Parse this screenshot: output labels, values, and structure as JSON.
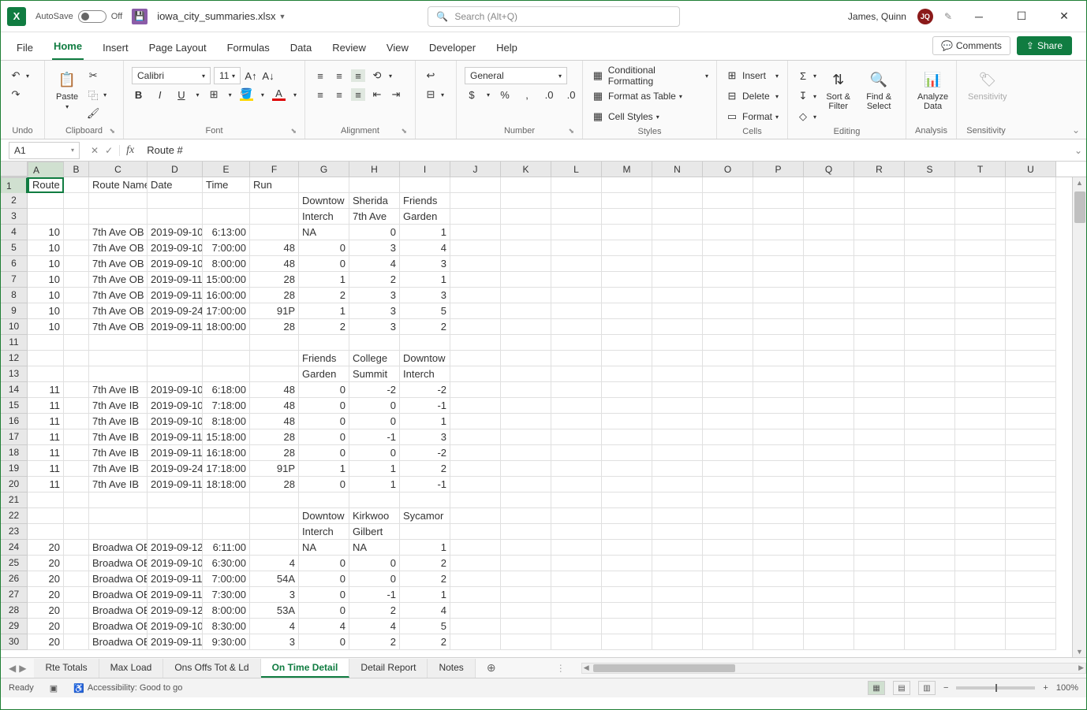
{
  "title": {
    "autosave_label": "AutoSave",
    "autosave_state": "Off",
    "filename": "iowa_city_summaries.xlsx",
    "search_placeholder": "Search (Alt+Q)",
    "username": "James, Quinn",
    "user_initials": "JQ"
  },
  "menu": {
    "tabs": [
      "File",
      "Home",
      "Insert",
      "Page Layout",
      "Formulas",
      "Data",
      "Review",
      "View",
      "Developer",
      "Help"
    ],
    "active": "Home",
    "comments": "Comments",
    "share": "Share"
  },
  "ribbon": {
    "undo_label": "Undo",
    "clipboard_label": "Clipboard",
    "paste": "Paste",
    "font_label": "Font",
    "font_name": "Calibri",
    "font_size": "11",
    "alignment_label": "Alignment",
    "number_label": "Number",
    "number_format": "General",
    "styles_label": "Styles",
    "cond_fmt": "Conditional Formatting",
    "fmt_table": "Format as Table",
    "cell_styles": "Cell Styles",
    "cells_label": "Cells",
    "insert": "Insert",
    "delete": "Delete",
    "format": "Format",
    "editing_label": "Editing",
    "sort_filter": "Sort & Filter",
    "find_select": "Find & Select",
    "analysis_label": "Analysis",
    "analyze_data": "Analyze Data",
    "sensitivity_label": "Sensitivity",
    "sensitivity": "Sensitivity"
  },
  "formula": {
    "namebox": "A1",
    "value": "Route #"
  },
  "columns": {
    "letters": [
      "A",
      "B",
      "C",
      "D",
      "E",
      "F",
      "G",
      "H",
      "I",
      "J",
      "K",
      "L",
      "M",
      "N",
      "O",
      "P",
      "Q",
      "R",
      "S",
      "T",
      "U"
    ],
    "widths": [
      46,
      32,
      74,
      70,
      60,
      62,
      64,
      64,
      64,
      64,
      64,
      64,
      64,
      64,
      64,
      64,
      64,
      64,
      64,
      64,
      64
    ],
    "selected": 0
  },
  "rows": {
    "count": 31,
    "selected": 1,
    "data": [
      {
        "r": 1,
        "cells": {
          "A": "Route #",
          "B": "",
          "C": "Route Name",
          "D": "Date",
          "E": "Time",
          "F": "Run"
        }
      },
      {
        "r": 2,
        "cells": {
          "G": "Downtow",
          "H": "Sherida",
          "I": "Friends"
        }
      },
      {
        "r": 3,
        "cells": {
          "G": "Interch",
          "H": "7th Ave",
          "I": "Garden"
        }
      },
      {
        "r": 4,
        "cells": {
          "A": "10",
          "C": "7th Ave OB",
          "D": "2019-09-10",
          "E": "6:13:00",
          "G": "NA",
          "H": "0",
          "I": "1"
        },
        "align": {
          "A": "r",
          "D": "r",
          "E": "r",
          "H": "r",
          "I": "r"
        }
      },
      {
        "r": 5,
        "cells": {
          "A": "10",
          "C": "7th Ave OB",
          "D": "2019-09-10",
          "E": "7:00:00",
          "F": "48",
          "G": "0",
          "H": "3",
          "I": "4"
        },
        "align": {
          "A": "r",
          "D": "r",
          "E": "r",
          "F": "r",
          "G": "r",
          "H": "r",
          "I": "r"
        }
      },
      {
        "r": 6,
        "cells": {
          "A": "10",
          "C": "7th Ave OB",
          "D": "2019-09-10",
          "E": "8:00:00",
          "F": "48",
          "G": "0",
          "H": "4",
          "I": "3"
        },
        "align": {
          "A": "r",
          "D": "r",
          "E": "r",
          "F": "r",
          "G": "r",
          "H": "r",
          "I": "r"
        }
      },
      {
        "r": 7,
        "cells": {
          "A": "10",
          "C": "7th Ave OB",
          "D": "2019-09-11",
          "E": "15:00:00",
          "F": "28",
          "G": "1",
          "H": "2",
          "I": "1"
        },
        "align": {
          "A": "r",
          "D": "r",
          "E": "r",
          "F": "r",
          "G": "r",
          "H": "r",
          "I": "r"
        }
      },
      {
        "r": 8,
        "cells": {
          "A": "10",
          "C": "7th Ave OB",
          "D": "2019-09-11",
          "E": "16:00:00",
          "F": "28",
          "G": "2",
          "H": "3",
          "I": "3"
        },
        "align": {
          "A": "r",
          "D": "r",
          "E": "r",
          "F": "r",
          "G": "r",
          "H": "r",
          "I": "r"
        }
      },
      {
        "r": 9,
        "cells": {
          "A": "10",
          "C": "7th Ave OB",
          "D": "2019-09-24",
          "E": "17:00:00",
          "F": "91P",
          "G": "1",
          "H": "3",
          "I": "5"
        },
        "align": {
          "A": "r",
          "D": "r",
          "E": "r",
          "F": "r",
          "G": "r",
          "H": "r",
          "I": "r"
        }
      },
      {
        "r": 10,
        "cells": {
          "A": "10",
          "C": "7th Ave OB",
          "D": "2019-09-11",
          "E": "18:00:00",
          "F": "28",
          "G": "2",
          "H": "3",
          "I": "2"
        },
        "align": {
          "A": "r",
          "D": "r",
          "E": "r",
          "F": "r",
          "G": "r",
          "H": "r",
          "I": "r"
        }
      },
      {
        "r": 11,
        "cells": {}
      },
      {
        "r": 12,
        "cells": {
          "G": "Friends",
          "H": "College",
          "I": "Downtow"
        }
      },
      {
        "r": 13,
        "cells": {
          "G": "Garden",
          "H": "Summit",
          "I": "Interch"
        }
      },
      {
        "r": 14,
        "cells": {
          "A": "11",
          "C": "7th Ave IB",
          "D": "2019-09-10",
          "E": "6:18:00",
          "F": "48",
          "G": "0",
          "H": "-2",
          "I": "-2"
        },
        "align": {
          "A": "r",
          "D": "r",
          "E": "r",
          "F": "r",
          "G": "r",
          "H": "r",
          "I": "r"
        }
      },
      {
        "r": 15,
        "cells": {
          "A": "11",
          "C": "7th Ave IB",
          "D": "2019-09-10",
          "E": "7:18:00",
          "F": "48",
          "G": "0",
          "H": "0",
          "I": "-1"
        },
        "align": {
          "A": "r",
          "D": "r",
          "E": "r",
          "F": "r",
          "G": "r",
          "H": "r",
          "I": "r"
        }
      },
      {
        "r": 16,
        "cells": {
          "A": "11",
          "C": "7th Ave IB",
          "D": "2019-09-10",
          "E": "8:18:00",
          "F": "48",
          "G": "0",
          "H": "0",
          "I": "1"
        },
        "align": {
          "A": "r",
          "D": "r",
          "E": "r",
          "F": "r",
          "G": "r",
          "H": "r",
          "I": "r"
        }
      },
      {
        "r": 17,
        "cells": {
          "A": "11",
          "C": "7th Ave IB",
          "D": "2019-09-11",
          "E": "15:18:00",
          "F": "28",
          "G": "0",
          "H": "-1",
          "I": "3"
        },
        "align": {
          "A": "r",
          "D": "r",
          "E": "r",
          "F": "r",
          "G": "r",
          "H": "r",
          "I": "r"
        }
      },
      {
        "r": 18,
        "cells": {
          "A": "11",
          "C": "7th Ave IB",
          "D": "2019-09-11",
          "E": "16:18:00",
          "F": "28",
          "G": "0",
          "H": "0",
          "I": "-2"
        },
        "align": {
          "A": "r",
          "D": "r",
          "E": "r",
          "F": "r",
          "G": "r",
          "H": "r",
          "I": "r"
        }
      },
      {
        "r": 19,
        "cells": {
          "A": "11",
          "C": "7th Ave IB",
          "D": "2019-09-24",
          "E": "17:18:00",
          "F": "91P",
          "G": "1",
          "H": "1",
          "I": "2"
        },
        "align": {
          "A": "r",
          "D": "r",
          "E": "r",
          "F": "r",
          "G": "r",
          "H": "r",
          "I": "r"
        }
      },
      {
        "r": 20,
        "cells": {
          "A": "11",
          "C": "7th Ave IB",
          "D": "2019-09-11",
          "E": "18:18:00",
          "F": "28",
          "G": "0",
          "H": "1",
          "I": "-1"
        },
        "align": {
          "A": "r",
          "D": "r",
          "E": "r",
          "F": "r",
          "G": "r",
          "H": "r",
          "I": "r"
        }
      },
      {
        "r": 21,
        "cells": {}
      },
      {
        "r": 22,
        "cells": {
          "G": "Downtow",
          "H": "Kirkwoo",
          "I": "Sycamor"
        }
      },
      {
        "r": 23,
        "cells": {
          "G": "Interch",
          "H": "Gilbert"
        }
      },
      {
        "r": 24,
        "cells": {
          "A": "20",
          "C": "Broadwa OB",
          "D": "2019-09-12",
          "E": "6:11:00",
          "G": "NA",
          "H": "NA",
          "I": "1"
        },
        "align": {
          "A": "r",
          "D": "r",
          "E": "r",
          "I": "r"
        }
      },
      {
        "r": 25,
        "cells": {
          "A": "20",
          "C": "Broadwa OB",
          "D": "2019-09-10",
          "E": "6:30:00",
          "F": "4",
          "G": "0",
          "H": "0",
          "I": "2"
        },
        "align": {
          "A": "r",
          "D": "r",
          "E": "r",
          "F": "r",
          "G": "r",
          "H": "r",
          "I": "r"
        }
      },
      {
        "r": 26,
        "cells": {
          "A": "20",
          "C": "Broadwa OB",
          "D": "2019-09-11",
          "E": "7:00:00",
          "F": "54A",
          "G": "0",
          "H": "0",
          "I": "2"
        },
        "align": {
          "A": "r",
          "D": "r",
          "E": "r",
          "F": "r",
          "G": "r",
          "H": "r",
          "I": "r"
        }
      },
      {
        "r": 27,
        "cells": {
          "A": "20",
          "C": "Broadwa OB",
          "D": "2019-09-11",
          "E": "7:30:00",
          "F": "3",
          "G": "0",
          "H": "-1",
          "I": "1"
        },
        "align": {
          "A": "r",
          "D": "r",
          "E": "r",
          "F": "r",
          "G": "r",
          "H": "r",
          "I": "r"
        }
      },
      {
        "r": 28,
        "cells": {
          "A": "20",
          "C": "Broadwa OB",
          "D": "2019-09-12",
          "E": "8:00:00",
          "F": "53A",
          "G": "0",
          "H": "2",
          "I": "4"
        },
        "align": {
          "A": "r",
          "D": "r",
          "E": "r",
          "F": "r",
          "G": "r",
          "H": "r",
          "I": "r"
        }
      },
      {
        "r": 29,
        "cells": {
          "A": "20",
          "C": "Broadwa OB",
          "D": "2019-09-10",
          "E": "8:30:00",
          "F": "4",
          "G": "4",
          "H": "4",
          "I": "5"
        },
        "align": {
          "A": "r",
          "D": "r",
          "E": "r",
          "F": "r",
          "G": "r",
          "H": "r",
          "I": "r"
        }
      },
      {
        "r": 30,
        "cells": {
          "A": "20",
          "C": "Broadwa OB",
          "D": "2019-09-11",
          "E": "9:30:00",
          "F": "3",
          "G": "0",
          "H": "2",
          "I": "2"
        },
        "align": {
          "A": "r",
          "D": "r",
          "E": "r",
          "F": "r",
          "G": "r",
          "H": "r",
          "I": "r"
        }
      }
    ]
  },
  "sheets": {
    "tabs": [
      "Rte Totals",
      "Max Load",
      "Ons Offs Tot & Ld",
      "On Time Detail",
      "Detail Report",
      "Notes"
    ],
    "active": "On Time Detail"
  },
  "status": {
    "ready": "Ready",
    "accessibility": "Accessibility: Good to go",
    "zoom": "100%"
  }
}
